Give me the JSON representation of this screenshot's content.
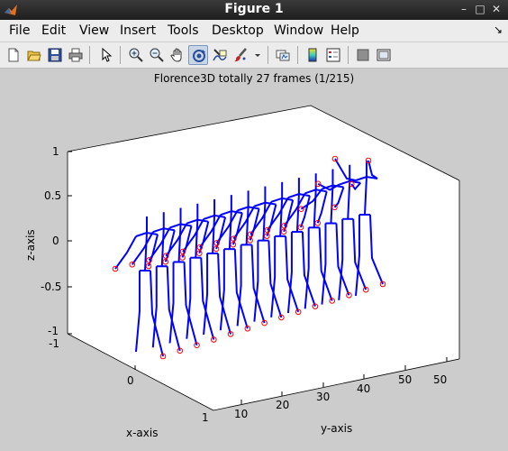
{
  "window": {
    "title": "Figure 1",
    "minimize": "–",
    "maximize": "□",
    "close": "✕"
  },
  "menu": {
    "items": [
      "File",
      "Edit",
      "View",
      "Insert",
      "Tools",
      "Desktop",
      "Window",
      "Help"
    ],
    "overflow": "↘"
  },
  "toolbar": {
    "icons": [
      "new-figure-icon",
      "open-file-icon",
      "save-icon",
      "print-icon",
      "select-arrow-icon",
      "zoom-in-icon",
      "zoom-out-icon",
      "pan-hand-icon",
      "rotate-3d-icon",
      "data-cursor-icon",
      "brush-icon",
      "brush-dropdown-icon",
      "link-plot-icon",
      "colorbar-icon",
      "legend-icon",
      "hide-plot-tools-icon",
      "show-plot-tools-icon"
    ],
    "active": "rotate-3d-icon"
  },
  "axes": {
    "title": "Florence3D totally 27 frames (1/215)",
    "xlabel": "x-axis",
    "ylabel": "y-axis",
    "zlabel": "z-axis",
    "x_ticks": [
      "-1",
      "0",
      "1"
    ],
    "y_ticks": [
      "10",
      "20",
      "30",
      "40",
      "50"
    ],
    "z_ticks": [
      "1",
      "0.5",
      "0",
      "-0.5",
      "-1"
    ],
    "line_color": "#0000ff",
    "marker_color": "#ff0000",
    "background": "#ffffff",
    "figure_color": "#cccccc"
  },
  "chart_data": {
    "type": "line",
    "title": "Florence3D totally 27 frames (1/215)",
    "xlabel": "x-axis",
    "ylabel": "y-axis",
    "zlabel": "z-axis",
    "xlim": [
      -1,
      1
    ],
    "ylim": [
      0,
      55
    ],
    "zlim": [
      -1,
      1
    ],
    "frames": 27,
    "series_description_note": "",
    "skeletons": 14,
    "markers": "joints marked with red circles"
  }
}
